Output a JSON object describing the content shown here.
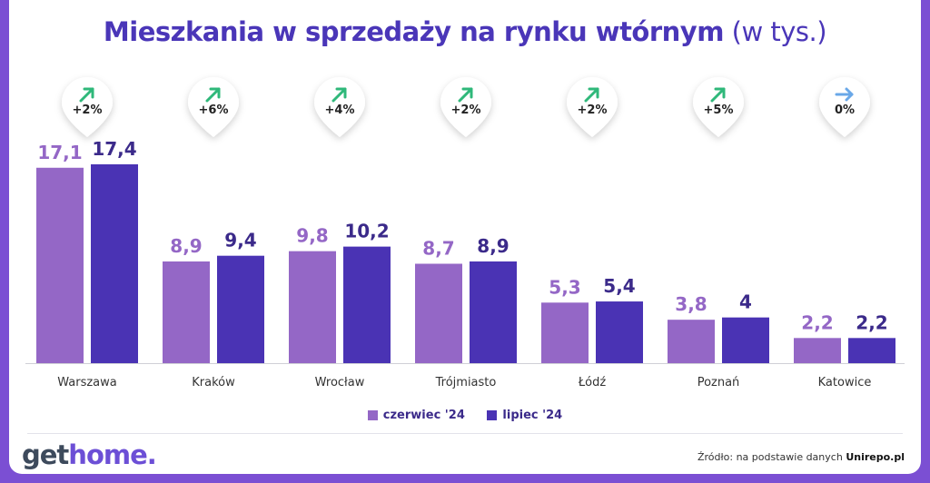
{
  "title": {
    "bold": "Mieszkania w sprzedaży na rynku wtórnym",
    "light": "(w tys.)"
  },
  "colors": {
    "series1": "#9467c6",
    "series2": "#4a33b4",
    "up_arrow": "#2fb87a",
    "flat_arrow": "#6aa8e8",
    "label1": "#9467c6",
    "label2": "#3b2a8a"
  },
  "chart_data": {
    "type": "bar",
    "categories": [
      "Warszawa",
      "Kraków",
      "Wrocław",
      "Trójmiasto",
      "Łódź",
      "Poznań",
      "Katowice"
    ],
    "series": [
      {
        "name": "czerwiec '24",
        "values": [
          17.1,
          8.9,
          9.8,
          8.7,
          5.3,
          3.8,
          2.2
        ],
        "labels": [
          "17,1",
          "8,9",
          "9,8",
          "8,7",
          "5,3",
          "3,8",
          "2,2"
        ]
      },
      {
        "name": "lipiec '24",
        "values": [
          17.4,
          9.4,
          10.2,
          8.9,
          5.4,
          4.0,
          2.2
        ],
        "labels": [
          "17,4",
          "9,4",
          "10,2",
          "8,9",
          "5,4",
          "4",
          "2,2"
        ]
      }
    ],
    "changes": [
      {
        "text": "+2%",
        "arrow": "up"
      },
      {
        "text": "+6%",
        "arrow": "up"
      },
      {
        "text": "+4%",
        "arrow": "up"
      },
      {
        "text": "+2%",
        "arrow": "up"
      },
      {
        "text": "+2%",
        "arrow": "up"
      },
      {
        "text": "+5%",
        "arrow": "up"
      },
      {
        "text": "0%",
        "arrow": "flat"
      }
    ],
    "ylim": [
      0,
      17.4
    ],
    "legend_position": "bottom"
  },
  "logo": {
    "get": "get",
    "home": "home",
    "dot": "."
  },
  "source": {
    "prefix": "Źródło: na podstawie danych",
    "name": "Unirepo.pl"
  }
}
